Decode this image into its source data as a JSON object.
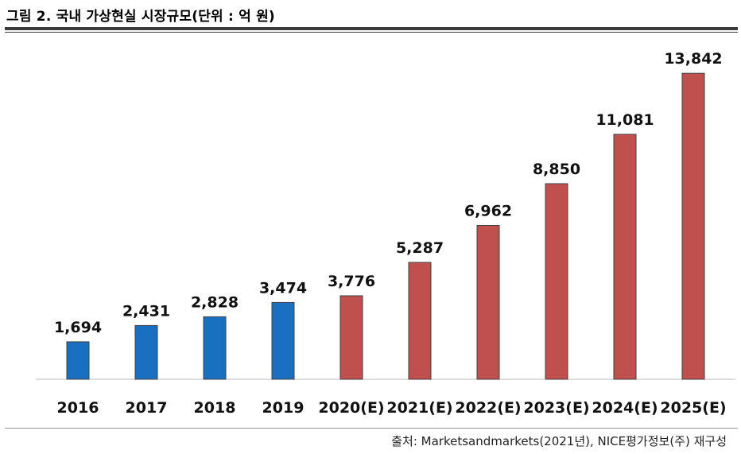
{
  "title": "그림 2. 국내 가상현실 시장규모(단위 : 억 원)",
  "source": "출처: Marketsandmarkets(2021년), NICE평가정보(주) 재구성",
  "colors": {
    "actual": "#1a6fc0",
    "estimate": "#c0504d",
    "bar_border": "#404040",
    "axis": "#bfbfbf"
  },
  "chart_data": {
    "type": "bar",
    "title": "그림 2. 국내 가상현실 시장규모(단위 : 억 원)",
    "xlabel": "",
    "ylabel": "",
    "ylim": [
      0,
      15000
    ],
    "grid": false,
    "categories": [
      "2016",
      "2017",
      "2018",
      "2019",
      "2020(E)",
      "2021(E)",
      "2022(E)",
      "2023(E)",
      "2024(E)",
      "2025(E)"
    ],
    "values": [
      1694,
      2431,
      2828,
      3474,
      3776,
      5287,
      6962,
      8850,
      11081,
      13842
    ],
    "value_labels": [
      "1,694",
      "2,431",
      "2,828",
      "3,474",
      "3,776",
      "5,287",
      "6,962",
      "8,850",
      "11,081",
      "13,842"
    ],
    "kinds": [
      "actual",
      "actual",
      "actual",
      "actual",
      "estimate",
      "estimate",
      "estimate",
      "estimate",
      "estimate",
      "estimate"
    ]
  }
}
